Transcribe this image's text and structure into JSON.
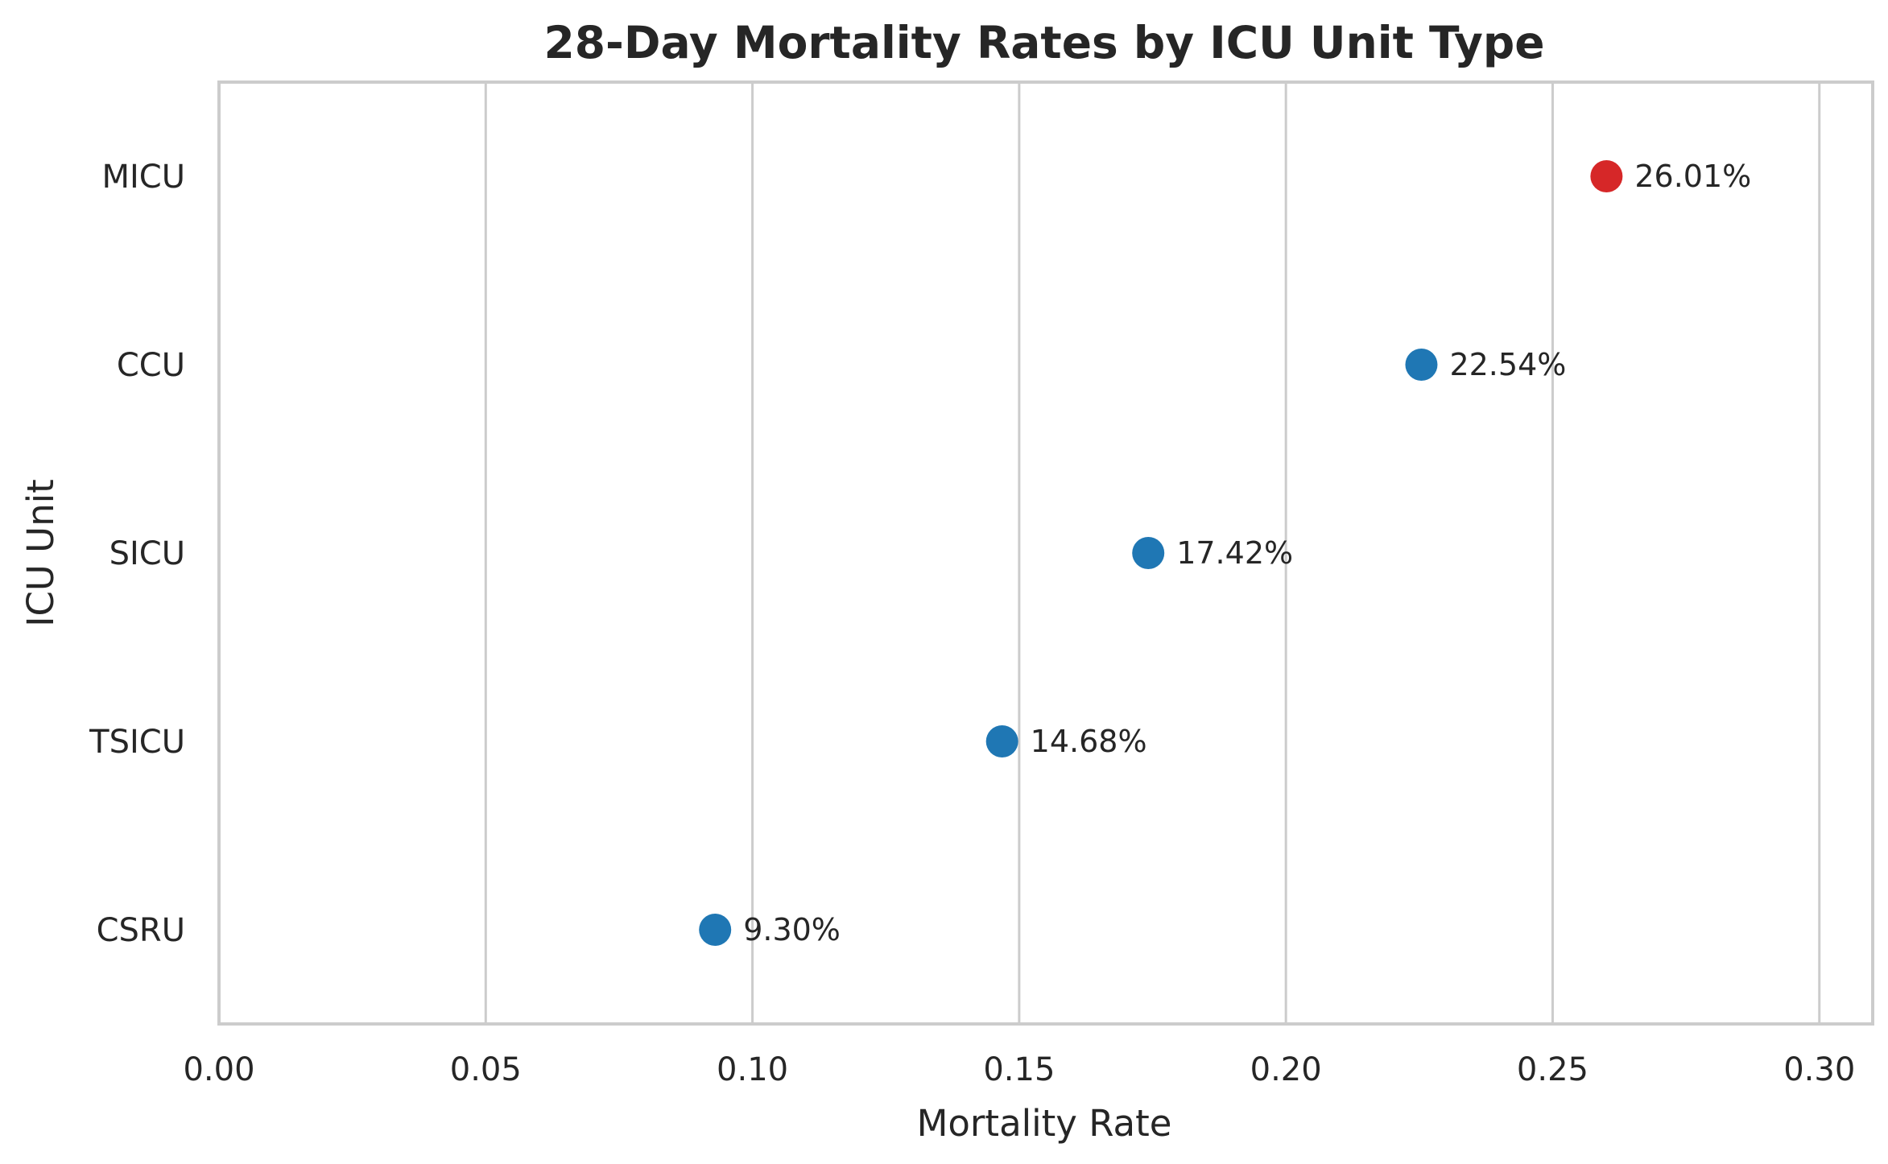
{
  "chart_data": {
    "type": "scatter",
    "title": "28-Day Mortality Rates by ICU Unit Type",
    "xlabel": "Mortality Rate",
    "ylabel": "ICU Unit",
    "xlim": [
      0,
      0.31
    ],
    "x_ticks": [
      "0.00",
      "0.05",
      "0.10",
      "0.15",
      "0.20",
      "0.25",
      "0.30"
    ],
    "x_tick_values": [
      0,
      0.05,
      0.1,
      0.15,
      0.2,
      0.25,
      0.3
    ],
    "grid": "vertical",
    "categories": [
      "MICU",
      "CCU",
      "SICU",
      "TSICU",
      "CSRU"
    ],
    "values": [
      0.2601,
      0.2254,
      0.1742,
      0.1468,
      0.093
    ],
    "data_labels": [
      "26.01%",
      "22.54%",
      "17.42%",
      "14.68%",
      "9.30%"
    ],
    "colors": [
      "#d62728",
      "#1f77b4",
      "#1f77b4",
      "#1f77b4",
      "#1f77b4"
    ]
  }
}
